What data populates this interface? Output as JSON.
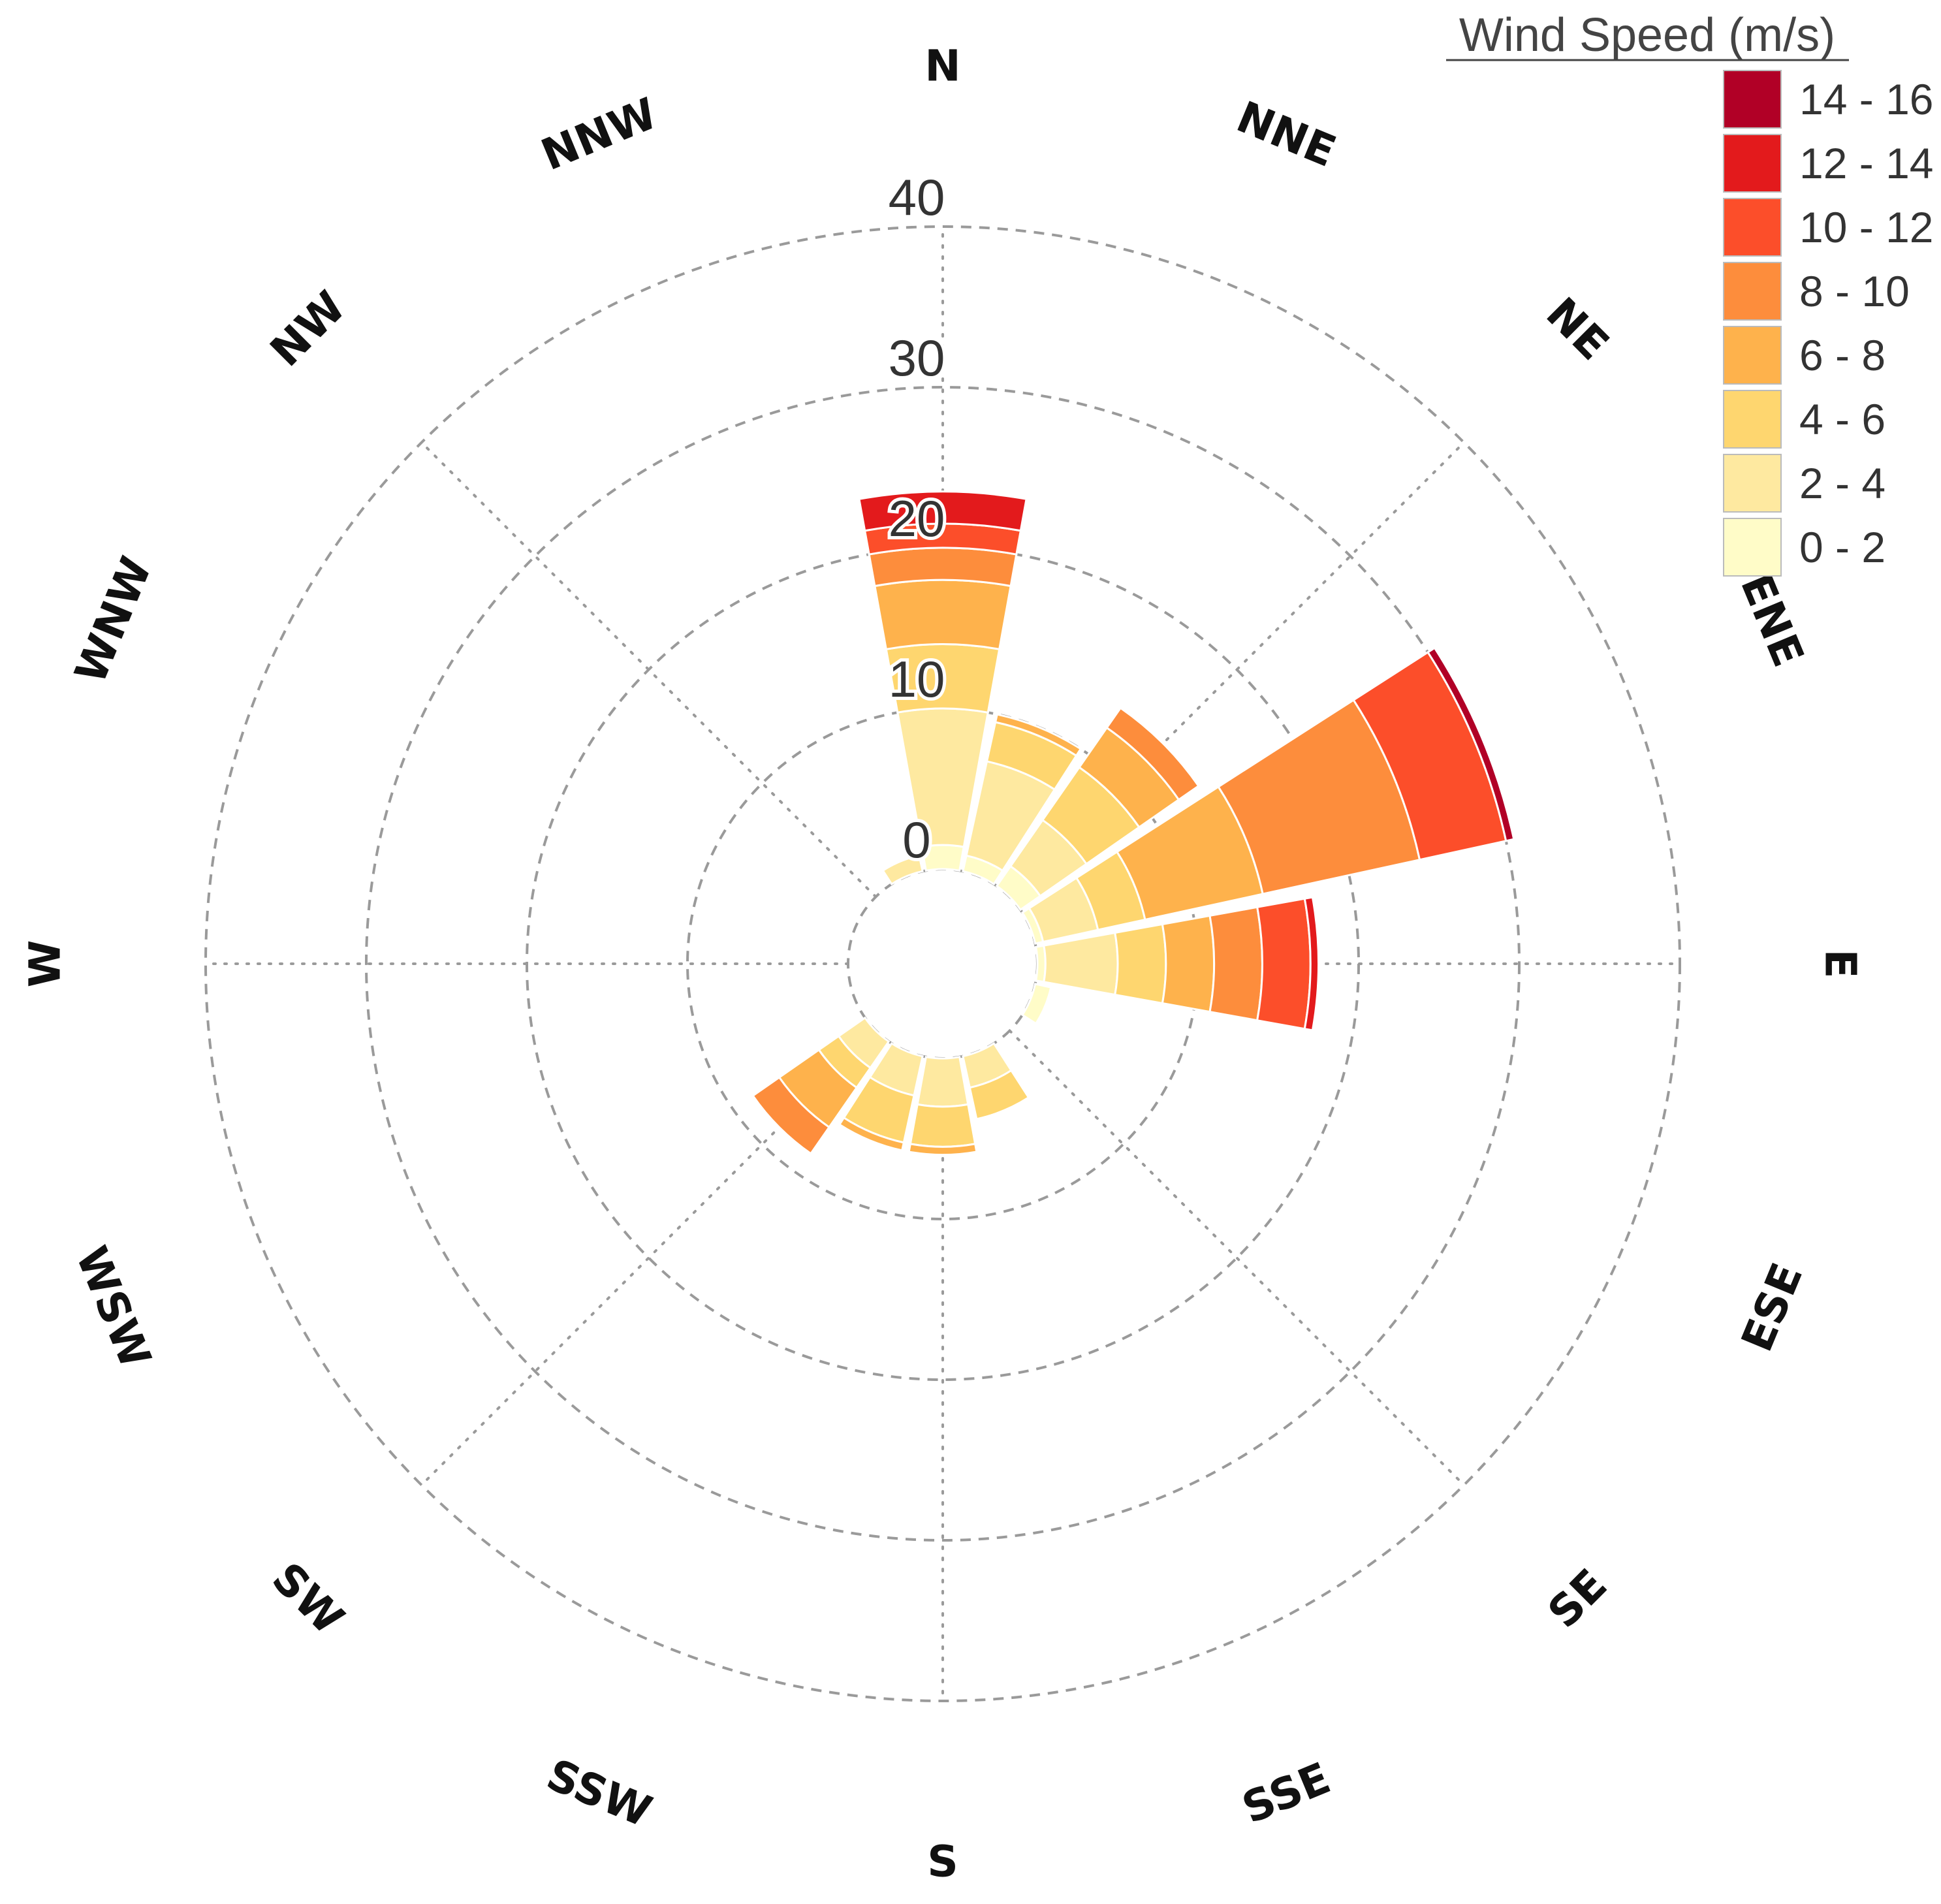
{
  "chart_data": {
    "type": "polar-stacked-bar",
    "title": "",
    "legend": {
      "title": "Wind Speed (m/s)",
      "placement": "top-right",
      "bins": [
        "0 - 2",
        "2 - 4",
        "4 - 6",
        "6 - 8",
        "8 - 10",
        "10 - 12",
        "12 - 14",
        "14 - 16"
      ],
      "colors": [
        "#fffcc8",
        "#fee9a0",
        "#fed66f",
        "#feb24c",
        "#fd8d3c",
        "#fc4e2a",
        "#e31a1c",
        "#b10026"
      ]
    },
    "directions": [
      "N",
      "NNE",
      "NE",
      "ENE",
      "E",
      "ESE",
      "SE",
      "SSE",
      "S",
      "SSW",
      "SW",
      "WSW",
      "W",
      "WNW",
      "NW",
      "NNW"
    ],
    "radial_ticks": [
      "0",
      "10",
      "20",
      "30",
      "40"
    ],
    "radial_range": [
      0,
      40
    ],
    "inner_hole": 6,
    "grid": true,
    "series": [
      {
        "name": "0 - 2",
        "values": [
          1.5,
          1,
          1.5,
          0.5,
          0.5,
          1,
          0,
          0,
          0,
          0,
          0,
          0,
          0,
          0,
          0,
          0
        ]
      },
      {
        "name": "2 - 4",
        "values": [
          8.5,
          6,
          3.5,
          3.5,
          4.5,
          0,
          0,
          2,
          3,
          2.5,
          2,
          0,
          0,
          0,
          0,
          1
        ]
      },
      {
        "name": "4 - 6",
        "values": [
          4,
          2.5,
          4,
          3,
          3,
          0,
          0,
          2,
          2.5,
          3,
          1.5,
          0,
          0,
          0,
          0,
          0
        ]
      },
      {
        "name": "6 - 8",
        "values": [
          4,
          0.5,
          3,
          7.5,
          3,
          0,
          0,
          0,
          0.5,
          0.5,
          3,
          0,
          0,
          0,
          0,
          0
        ]
      },
      {
        "name": "8 - 10",
        "values": [
          2,
          0,
          1.5,
          10,
          3,
          0,
          0,
          0,
          0,
          0,
          2,
          0,
          0,
          0,
          0,
          0
        ]
      },
      {
        "name": "10 - 12",
        "values": [
          1.5,
          0,
          0,
          5.5,
          3,
          0,
          0,
          0,
          0,
          0,
          0,
          0,
          0,
          0,
          0,
          0
        ]
      },
      {
        "name": "12 - 14",
        "values": [
          2,
          0,
          0,
          0,
          0.5,
          0,
          0,
          0,
          0,
          0,
          0,
          0,
          0,
          0,
          0,
          0
        ]
      },
      {
        "name": "14 - 16",
        "values": [
          0,
          0,
          0,
          0.5,
          0,
          0,
          0,
          0,
          0,
          0,
          0,
          0,
          0,
          0,
          0,
          0
        ]
      }
    ]
  }
}
